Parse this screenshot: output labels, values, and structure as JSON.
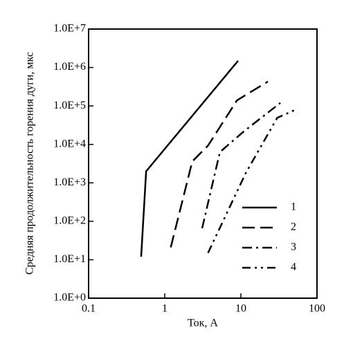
{
  "chart_data": {
    "type": "line",
    "xlabel": "Ток, А",
    "ylabel": "Средняя продолжительность горения дуги, мкс",
    "xscale": "log",
    "yscale": "log",
    "xlim": [
      0.1,
      100
    ],
    "xticks": [
      0.1,
      1,
      10,
      100
    ],
    "ylim": [
      1,
      10000000
    ],
    "yticks": [
      {
        "value": 1,
        "label": "1.0E+0"
      },
      {
        "value": 10,
        "label": "1.0E+1"
      },
      {
        "value": 100,
        "label": "1.0E+2"
      },
      {
        "value": 1000,
        "label": "1.0E+3"
      },
      {
        "value": 10000,
        "label": "1.0E+4"
      },
      {
        "value": 100000,
        "label": "1.0E+5"
      },
      {
        "value": 1000000,
        "label": "1.0E+6"
      },
      {
        "value": 10000000,
        "label": "1.0E+7"
      }
    ],
    "legend": "lower right",
    "series": [
      {
        "name": "1",
        "color": "#000000",
        "linestyle": "solid",
        "x": [
          0.49,
          0.57,
          9.2
        ],
        "values": [
          12,
          2000,
          1500000
        ]
      },
      {
        "name": "2",
        "color": "#000000",
        "linestyle": "dashed",
        "x": [
          1.2,
          2.3,
          3.7,
          8.9,
          22.6
        ],
        "values": [
          21,
          3600,
          9300,
          140000,
          430000
        ]
      },
      {
        "name": "3",
        "color": "#000000",
        "linestyle": "dashdot",
        "x": [
          3.1,
          5.3,
          11,
          33
        ],
        "values": [
          66,
          6300,
          22000,
          120000
        ]
      },
      {
        "name": "4",
        "color": "#000000",
        "linestyle": "dashdotdot",
        "x": [
          3.7,
          11.6,
          30,
          53
        ],
        "values": [
          15,
          1800,
          49000,
          81000
        ]
      }
    ]
  }
}
